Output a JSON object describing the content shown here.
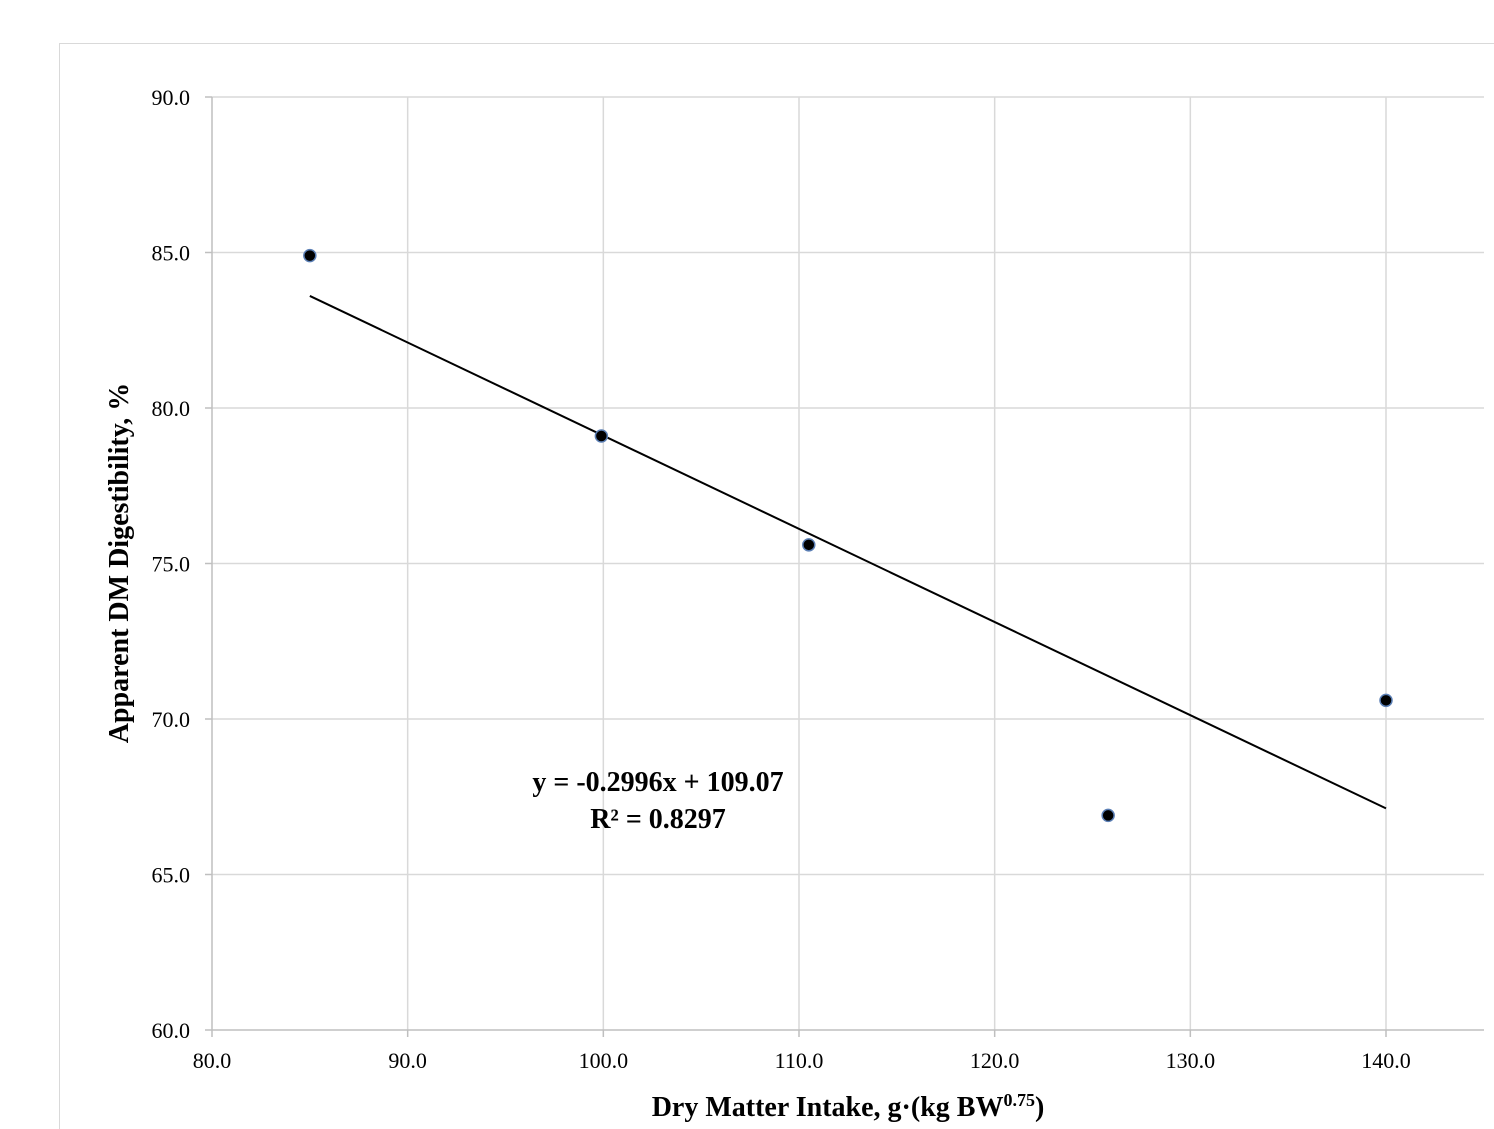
{
  "chart_data": {
    "type": "scatter",
    "title": "",
    "xlabel": "Dry Matter Intake, g·(kg BW",
    "xlabel_sup": "0.75",
    "xlabel_end": ")",
    "ylabel": "Apparent DM Digestibility, %",
    "xlim": [
      80.0,
      145.0
    ],
    "ylim": [
      60.0,
      90.0
    ],
    "x_ticks": [
      80.0,
      90.0,
      100.0,
      110.0,
      120.0,
      130.0,
      140.0
    ],
    "x_tick_labels": [
      "80.0",
      "90.0",
      "100.0",
      "110.0",
      "120.0",
      "130.0",
      "140.0"
    ],
    "y_ticks": [
      60.0,
      65.0,
      70.0,
      75.0,
      80.0,
      85.0,
      90.0
    ],
    "y_tick_labels": [
      "60.0",
      "65.0",
      "70.0",
      "75.0",
      "80.0",
      "85.0",
      "90.0"
    ],
    "grid": true,
    "series": [
      {
        "points": [
          {
            "x": 85.0,
            "y": 84.9
          },
          {
            "x": 99.9,
            "y": 79.1
          },
          {
            "x": 110.5,
            "y": 75.6
          },
          {
            "x": 125.8,
            "y": 66.9
          },
          {
            "x": 140.0,
            "y": 70.6
          }
        ],
        "color": "#000000"
      }
    ],
    "trendline": {
      "slope": -0.2996,
      "intercept": 109.07,
      "x_range": [
        85.0,
        140.0
      ],
      "equation": "y = -0.2996x + 109.07",
      "r_squared": "R² = 0.8297"
    },
    "colors": {
      "grid": "#d9d9d9",
      "axis": "#bfbfbf",
      "marker": "#000000",
      "marker_edge": "#5b7fb5",
      "trend": "#000000"
    }
  }
}
